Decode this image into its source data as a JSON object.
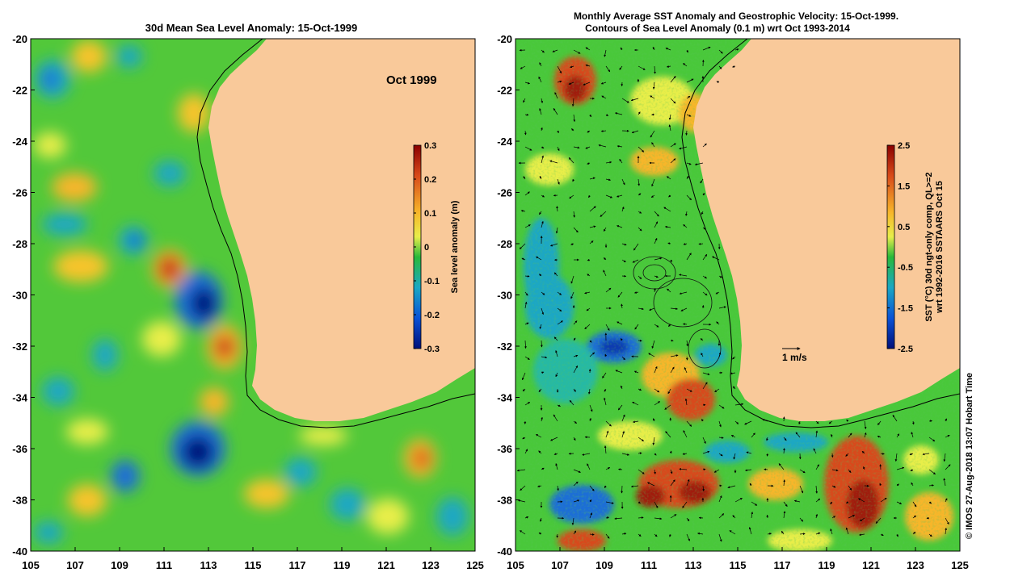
{
  "left_panel": {
    "title": "30d Mean Sea Level Anomaly: 15-Oct-1999",
    "month_label": "Oct 1999",
    "colorbar": {
      "label": "Sea level anomaly (m)",
      "ticks": [
        "0.3",
        "0.2",
        "0.1",
        "0",
        "-0.1",
        "-0.2",
        "-0.3"
      ],
      "colors": [
        "#8b0000",
        "#d84a1a",
        "#f7b62a",
        "#e8ee4a",
        "#28b93a",
        "#1aa7c4",
        "#0a52d6",
        "#00107a"
      ]
    },
    "y_ticks": [
      "-20",
      "-22",
      "-24",
      "-26",
      "-28",
      "-30",
      "-32",
      "-34",
      "-36",
      "-38",
      "-40"
    ],
    "x_ticks": [
      "105",
      "107",
      "109",
      "111",
      "113",
      "115",
      "117",
      "119",
      "121",
      "123",
      "125"
    ]
  },
  "right_panel": {
    "title_line1": "Monthly Average SST Anomaly  and Geostrophic Velocity: 15-Oct-1999.",
    "title_line2": "Contours of Sea Level Anomaly (0.1 m) wrt Oct 1993-2014",
    "scale_label": "1 m/s",
    "colorbar": {
      "label_line1": "SST (°C) 30d ngt-only comp, QL>=2",
      "label_line2": "wrt 1992-2016 SSTAARS Oct 15",
      "ticks": [
        "2.5",
        "1.5",
        "0.5",
        "-0.5",
        "-1.5",
        "-2.5"
      ],
      "colors": [
        "#8b0000",
        "#d84a1a",
        "#f7b62a",
        "#e8ee4a",
        "#28b93a",
        "#1aa7c4",
        "#0a52d6",
        "#00107a"
      ]
    },
    "y_ticks": [
      "-20",
      "-22",
      "-24",
      "-26",
      "-28",
      "-30",
      "-32",
      "-34",
      "-36",
      "-38",
      "-40"
    ],
    "x_ticks": [
      "105",
      "107",
      "109",
      "111",
      "113",
      "115",
      "117",
      "119",
      "121",
      "123",
      "125"
    ]
  },
  "credit": "© IMOS 27-Aug-2018 13:07 Hobart Time",
  "colors": {
    "land": "#f9c99a",
    "ocean_base": "#49c83a"
  }
}
